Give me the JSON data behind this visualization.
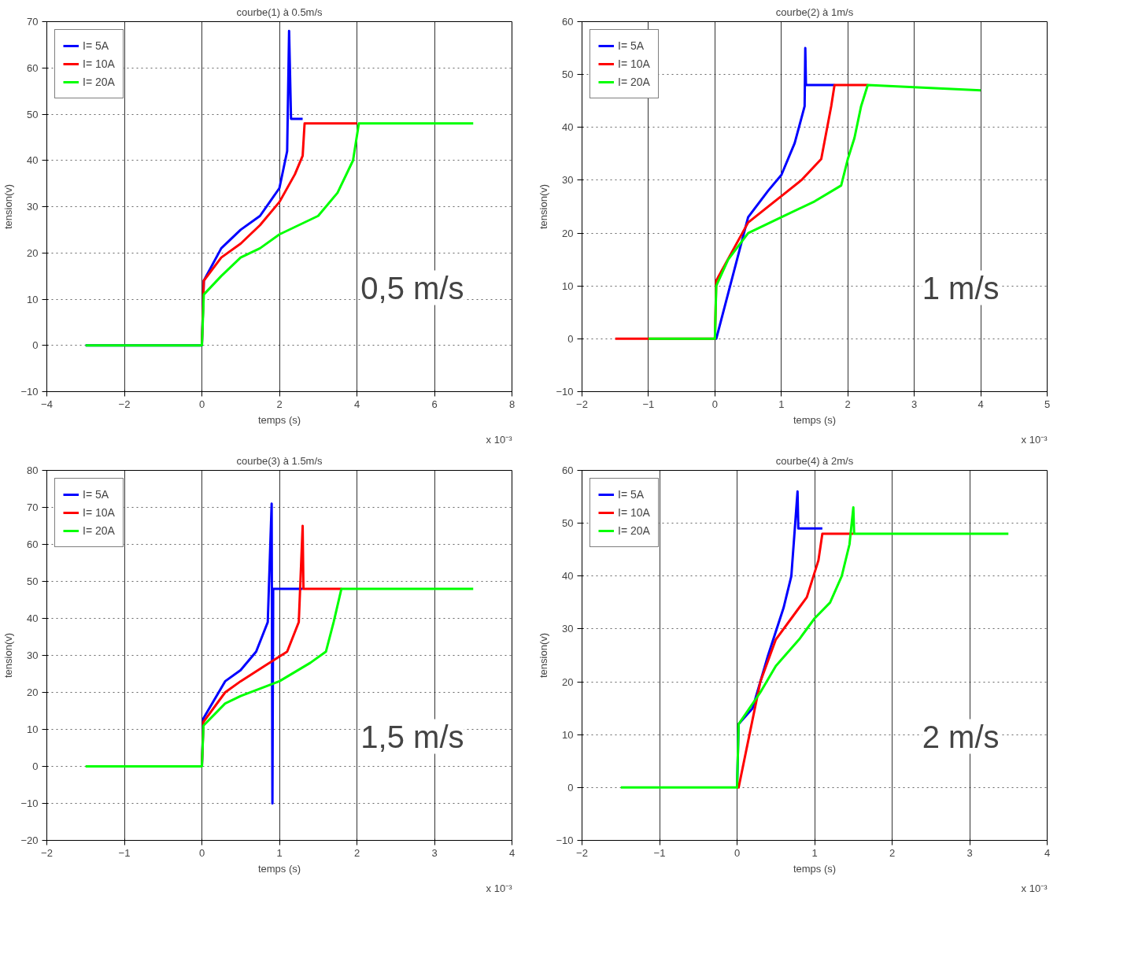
{
  "chart_data": [
    {
      "type": "line",
      "title": "courbe(1) à 0.5m/s",
      "xlabel": "temps (s)",
      "ylabel": "tension(v)",
      "annotations": [
        "0,5 m/s",
        "x 10⁻³"
      ],
      "xlim": [
        -4,
        8
      ],
      "xticks": [
        -4,
        -2,
        0,
        2,
        4,
        6,
        8
      ],
      "ylim": [
        -10,
        70
      ],
      "yticks": [
        -10,
        0,
        10,
        20,
        30,
        40,
        50,
        60,
        70
      ],
      "grid": true,
      "legend": "top left",
      "line_style": "solid",
      "series": [
        {
          "name": "I= 5A",
          "color": "#0000ff",
          "x": [
            -3,
            0,
            0.05,
            0.5,
            1,
            1.5,
            2,
            2.2,
            2.25,
            2.3,
            2.6
          ],
          "values": [
            0,
            0,
            14,
            21,
            25,
            28,
            34,
            42,
            68,
            49,
            49
          ]
        },
        {
          "name": "I= 10A",
          "color": "#ff0000",
          "x": [
            0,
            0.05,
            0.5,
            1,
            1.5,
            2,
            2.4,
            2.6,
            2.65,
            4.0
          ],
          "values": [
            0,
            14,
            19,
            22,
            26,
            31,
            37,
            41,
            48,
            48
          ]
        },
        {
          "name": "I= 20A",
          "color": "#00ff00",
          "x": [
            -3,
            0,
            0.05,
            0.5,
            1,
            1.5,
            2,
            2.5,
            3,
            3.5,
            3.9,
            4.05,
            7
          ],
          "values": [
            0,
            0,
            11,
            15,
            19,
            21,
            24,
            26,
            28,
            33,
            40,
            48,
            48
          ]
        }
      ]
    },
    {
      "type": "line",
      "title": "courbe(2) à 1m/s",
      "xlabel": "temps (s)",
      "ylabel": "tension(v)",
      "annotations": [
        "1 m/s",
        "x 10⁻³"
      ],
      "xlim": [
        -2,
        5
      ],
      "xticks": [
        -2,
        -1,
        0,
        1,
        2,
        3,
        4,
        5
      ],
      "ylim": [
        -10,
        60
      ],
      "yticks": [
        -10,
        0,
        10,
        20,
        30,
        40,
        50,
        60
      ],
      "grid": true,
      "legend": "top left",
      "line_style": "solid",
      "series": [
        {
          "name": "I= 5A",
          "color": "#0000ff",
          "x": [
            0,
            0.02,
            0.5,
            0.8,
            1,
            1.2,
            1.35,
            1.36,
            1.37,
            1.8
          ],
          "values": [
            0,
            null,
            23,
            28,
            31,
            37,
            44,
            55,
            48,
            48
          ]
        },
        {
          "name": "I= 10A",
          "color": "#ff0000",
          "x": [
            -1.5,
            0,
            0.02,
            0.5,
            1,
            1.3,
            1.6,
            1.75,
            1.8,
            2.3
          ],
          "values": [
            0,
            0,
            11,
            22,
            27,
            30,
            34,
            44,
            48,
            48
          ]
        },
        {
          "name": "I= 20A",
          "color": "#00ff00",
          "x": [
            -1,
            0,
            0.02,
            0.2,
            0.5,
            1,
            1.5,
            1.9,
            2.0,
            2.1,
            2.2,
            2.3,
            4
          ],
          "values": [
            0,
            0,
            10,
            15,
            20,
            23,
            26,
            29,
            34,
            38,
            44,
            48,
            47
          ]
        }
      ]
    },
    {
      "type": "line",
      "title": "courbe(3) à 1.5m/s",
      "xlabel": "temps (s)",
      "ylabel": "tension(v)",
      "annotations": [
        "1,5 m/s",
        "x 10⁻³"
      ],
      "xlim": [
        -2,
        4
      ],
      "xticks": [
        -2,
        -1,
        0,
        1,
        2,
        3,
        4
      ],
      "ylim": [
        -20,
        80
      ],
      "yticks": [
        -20,
        -10,
        0,
        10,
        20,
        30,
        40,
        50,
        60,
        70,
        80
      ],
      "grid": true,
      "legend": "top left",
      "line_style": "solid",
      "series": [
        {
          "name": "I= 5A",
          "color": "#0000ff",
          "x": [
            0,
            0.02,
            0.3,
            0.5,
            0.7,
            0.85,
            0.9,
            0.91,
            0.92,
            0.93,
            1.3
          ],
          "values": [
            0,
            13,
            23,
            26,
            31,
            39,
            71,
            -10,
            48,
            48,
            48
          ]
        },
        {
          "name": "I= 10A",
          "color": "#ff0000",
          "x": [
            0,
            0.02,
            0.3,
            0.5,
            0.8,
            1.1,
            1.25,
            1.3,
            1.31,
            1.8
          ],
          "values": [
            0,
            12,
            20,
            23,
            27,
            31,
            39,
            65,
            48,
            48
          ]
        },
        {
          "name": "I= 20A",
          "color": "#00ff00",
          "x": [
            -1.5,
            0,
            0.02,
            0.3,
            0.5,
            1,
            1.4,
            1.6,
            1.7,
            1.8,
            3.5
          ],
          "values": [
            0,
            0,
            11,
            17,
            19,
            23,
            28,
            31,
            39,
            48,
            48
          ]
        }
      ]
    },
    {
      "type": "line",
      "title": "courbe(4) à 2m/s",
      "xlabel": "temps (s)",
      "ylabel": "tension(v)",
      "annotations": [
        "2 m/s",
        "x 10⁻³"
      ],
      "xlim": [
        -2,
        4
      ],
      "xticks": [
        -2,
        -1,
        0,
        1,
        2,
        3,
        4
      ],
      "ylim": [
        -10,
        60
      ],
      "yticks": [
        -10,
        0,
        10,
        20,
        30,
        40,
        50,
        60
      ],
      "grid": true,
      "legend": "top left",
      "line_style": "solid",
      "series": [
        {
          "name": "I= 5A",
          "color": "#0000ff",
          "x": [
            0,
            0.02,
            0.2,
            0.4,
            0.6,
            0.7,
            0.78,
            0.79,
            1.1
          ],
          "values": [
            0,
            12,
            15,
            25,
            34,
            40,
            56,
            49,
            49
          ]
        },
        {
          "name": "I= 10A",
          "color": "#ff0000",
          "x": [
            0,
            0.02,
            0.3,
            0.5,
            0.7,
            0.9,
            1.05,
            1.1,
            1.5
          ],
          "values": [
            0,
            null,
            20,
            28,
            32,
            36,
            43,
            48,
            48
          ]
        },
        {
          "name": "I= 20A",
          "color": "#00ff00",
          "x": [
            -1.5,
            0,
            0.02,
            0.3,
            0.5,
            0.8,
            1.0,
            1.2,
            1.35,
            1.45,
            1.5,
            1.51,
            3.5
          ],
          "values": [
            0,
            0,
            12,
            18,
            23,
            28,
            32,
            35,
            40,
            46,
            53,
            48,
            48
          ]
        }
      ]
    }
  ]
}
